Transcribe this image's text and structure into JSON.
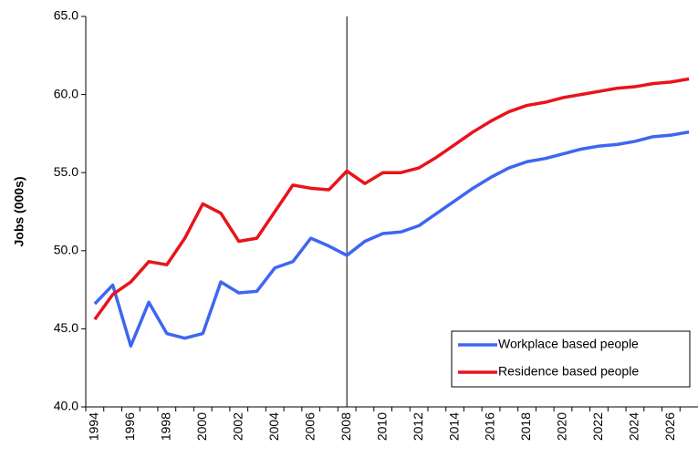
{
  "chart_data": {
    "type": "line",
    "y_label": "Jobs (000s)",
    "categories": [
      "1994",
      null,
      "1996",
      null,
      "1998",
      null,
      "2000",
      null,
      "2002",
      null,
      "2004",
      null,
      "2006",
      null,
      "2008",
      null,
      "2010",
      null,
      "2012",
      null,
      "2014",
      null,
      "2016",
      null,
      "2018",
      null,
      "2020",
      null,
      "2022",
      null,
      "2024",
      null,
      "2026",
      null
    ],
    "series": [
      {
        "name": "Workplace based people",
        "color": "#3f66f0",
        "values": [
          46.6,
          47.8,
          43.9,
          46.7,
          44.7,
          44.4,
          44.7,
          48.0,
          47.3,
          47.4,
          48.9,
          49.3,
          50.8,
          50.3,
          49.7,
          50.6,
          51.1,
          51.2,
          51.6,
          52.4,
          53.2,
          54.0,
          54.7,
          55.3,
          55.7,
          55.9,
          56.2,
          56.5,
          56.7,
          56.8,
          57.0,
          57.3,
          57.4,
          57.6
        ]
      },
      {
        "name": "Residence based people",
        "color": "#e8141b",
        "values": [
          45.6,
          47.2,
          48.0,
          49.3,
          49.1,
          50.8,
          53.0,
          52.4,
          50.6,
          50.8,
          52.5,
          54.2,
          54.0,
          53.9,
          55.1,
          54.3,
          55.0,
          55.0,
          55.3,
          56.0,
          56.8,
          57.6,
          58.3,
          58.9,
          59.3,
          59.5,
          59.8,
          60.0,
          60.2,
          60.4,
          60.5,
          60.7,
          60.8,
          61.0
        ]
      }
    ],
    "ylim": [
      40,
      65
    ],
    "yticks": [
      {
        "value": 40,
        "label": "40.0"
      },
      {
        "value": 45,
        "label": "45.0"
      },
      {
        "value": 50,
        "label": "50.0"
      },
      {
        "value": 55,
        "label": "55.0"
      },
      {
        "value": 60,
        "label": "60.0"
      },
      {
        "value": 65,
        "label": "65.0"
      }
    ],
    "vline_category": "2008",
    "grid": false,
    "legend": "lower right"
  }
}
